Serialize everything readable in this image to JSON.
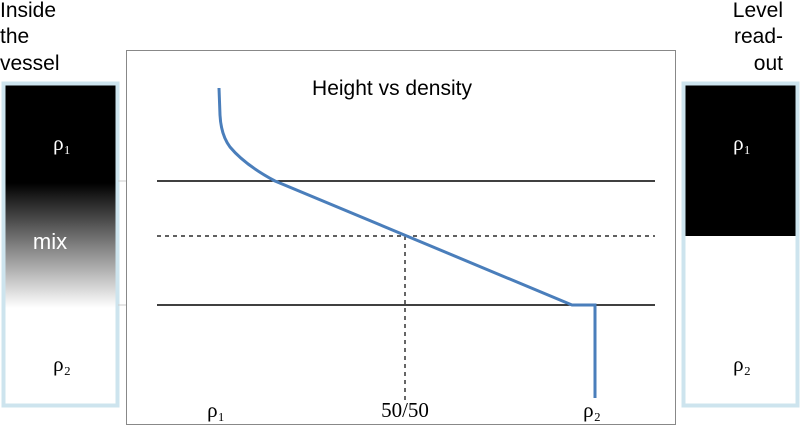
{
  "left_panel": {
    "title": [
      "Inside",
      "the",
      "vessel"
    ],
    "top_label": "ρ₁",
    "middle_label": "mix",
    "bottom_label": "ρ₂"
  },
  "right_panel": {
    "title": [
      "Level",
      "read-",
      "out"
    ],
    "top_label": "ρ₁",
    "bottom_label": "ρ₂"
  },
  "plot": {
    "title": "Height vs density",
    "x_labels": [
      "ρ₁",
      "50/50",
      "ρ₂"
    ]
  }
}
